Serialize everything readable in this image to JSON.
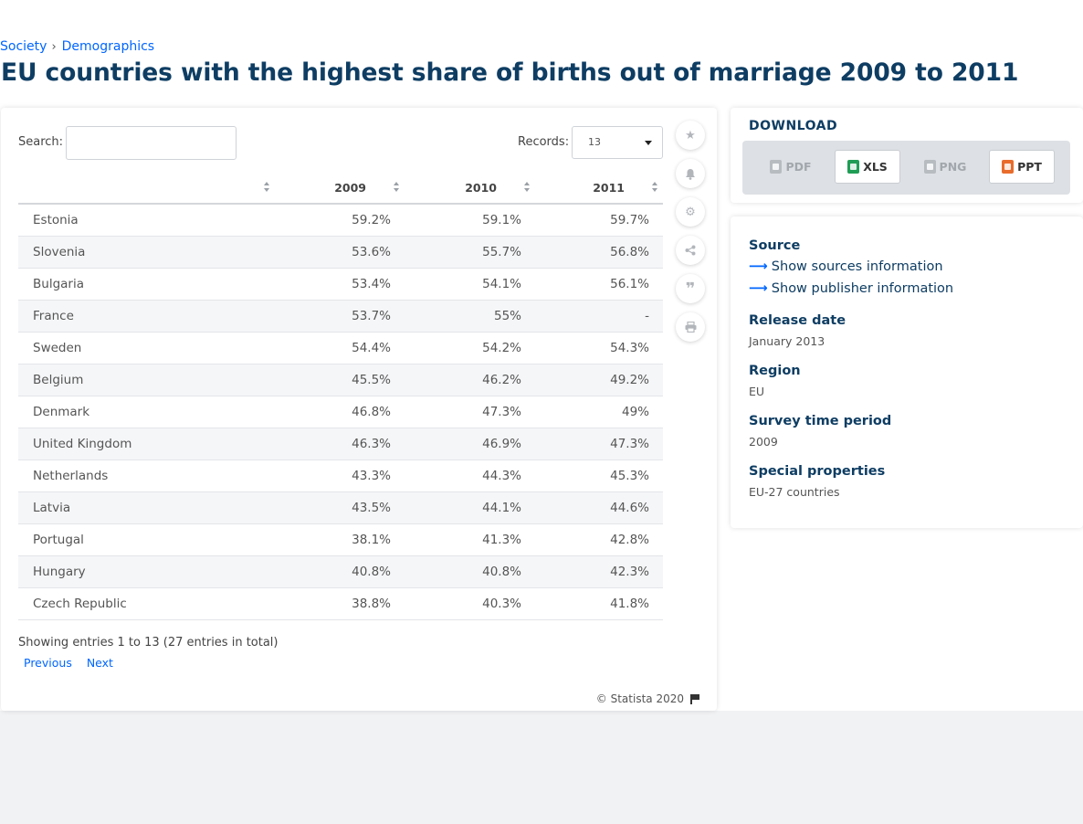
{
  "breadcrumb": [
    {
      "label": "Society"
    },
    {
      "label": "Demographics"
    }
  ],
  "title": "EU countries with the highest share of births out of marriage 2009 to 2011",
  "controls": {
    "search_label": "Search:",
    "search_value": "",
    "records_label": "Records:",
    "records_value": "13"
  },
  "table": {
    "headers": [
      "",
      "2009",
      "2010",
      "2011"
    ],
    "rows": [
      [
        "Estonia",
        "59.2%",
        "59.1%",
        "59.7%"
      ],
      [
        "Slovenia",
        "53.6%",
        "55.7%",
        "56.8%"
      ],
      [
        "Bulgaria",
        "53.4%",
        "54.1%",
        "56.1%"
      ],
      [
        "France",
        "53.7%",
        "55%",
        "-"
      ],
      [
        "Sweden",
        "54.4%",
        "54.2%",
        "54.3%"
      ],
      [
        "Belgium",
        "45.5%",
        "46.2%",
        "49.2%"
      ],
      [
        "Denmark",
        "46.8%",
        "47.3%",
        "49%"
      ],
      [
        "United Kingdom",
        "46.3%",
        "46.9%",
        "47.3%"
      ],
      [
        "Netherlands",
        "43.3%",
        "44.3%",
        "45.3%"
      ],
      [
        "Latvia",
        "43.5%",
        "44.1%",
        "44.6%"
      ],
      [
        "Portugal",
        "38.1%",
        "41.3%",
        "42.8%"
      ],
      [
        "Hungary",
        "40.8%",
        "40.8%",
        "42.3%"
      ],
      [
        "Czech Republic",
        "38.8%",
        "40.3%",
        "41.8%"
      ]
    ]
  },
  "pagination": {
    "showing": "Showing entries 1 to 13 (27 entries in total)",
    "previous": "Previous",
    "next": "Next"
  },
  "copyright": "© Statista 2020",
  "side_icons": [
    "star-icon",
    "bell-icon",
    "gear-icon",
    "share-icon",
    "quote-icon",
    "print-icon"
  ],
  "download": {
    "title": "DOWNLOAD",
    "buttons": [
      {
        "label": "PDF",
        "enabled": false
      },
      {
        "label": "XLS",
        "enabled": true
      },
      {
        "label": "PNG",
        "enabled": false
      },
      {
        "label": "PPT",
        "enabled": true
      }
    ]
  },
  "info": {
    "source_heading": "Source",
    "show_sources": "Show sources information",
    "show_publisher": "Show publisher information",
    "release_heading": "Release date",
    "release_value": "January 2013",
    "region_heading": "Region",
    "region_value": "EU",
    "period_heading": "Survey time period",
    "period_value": "2009",
    "special_heading": "Special properties",
    "special_value": "EU-27 countries"
  },
  "colors": {
    "title": "#0e3d63",
    "link": "#0066ff",
    "xls": "#1f9d55",
    "ppt": "#e86c2c"
  }
}
